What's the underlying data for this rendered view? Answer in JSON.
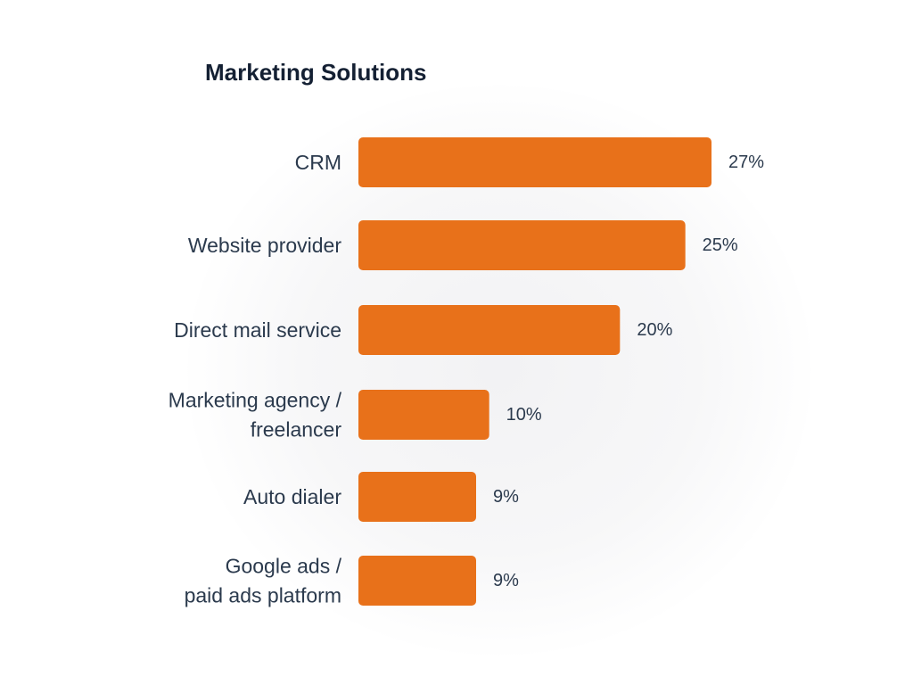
{
  "chart_data": {
    "type": "bar",
    "orientation": "horizontal",
    "title": "Marketing Solutions",
    "categories": [
      [
        "CRM"
      ],
      [
        "Website provider"
      ],
      [
        "Direct mail service"
      ],
      [
        "Marketing agency /",
        "freelancer"
      ],
      [
        "Auto dialer"
      ],
      [
        "Google ads /",
        "paid ads platform"
      ]
    ],
    "values": [
      27,
      25,
      20,
      10,
      9,
      9
    ],
    "value_labels": [
      "27%",
      "25%",
      "20%",
      "10%",
      "9%",
      "9%"
    ],
    "unit": "%",
    "xlim": [
      0,
      27
    ],
    "grid": false,
    "legend": "none",
    "bar_color": "#e8711a"
  }
}
